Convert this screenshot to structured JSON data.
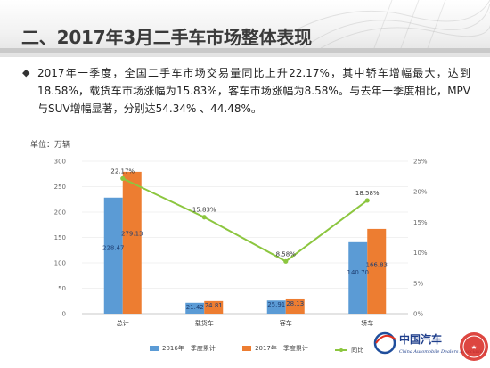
{
  "header": {
    "title": "二、2017年3月二手车市场整体表现"
  },
  "bullet": {
    "symbol": "◆",
    "text": "2017年一季度，全国二手车市场交易量同比上升22.17%，其中轿车增幅最大，达到18.58%，载货车市场涨幅为15.83%，客车市场涨幅为8.58%。与去年一季度相比，MPV与SUV增幅显著，分别达54.34% 、44.48%。"
  },
  "chart_data": {
    "type": "bar",
    "unit_label": "单位：万辆",
    "categories": [
      "总计",
      "载货车",
      "客车",
      "轿车"
    ],
    "series": [
      {
        "name": "2016年一季度累计",
        "type": "bar",
        "color": "#5b9bd5",
        "values": [
          228.47,
          21.42,
          25.91,
          140.7
        ]
      },
      {
        "name": "2017年一季度累计",
        "type": "bar",
        "color": "#ed7d31",
        "values": [
          279.13,
          24.81,
          28.13,
          166.83
        ]
      },
      {
        "name": "同比",
        "type": "line",
        "axis": "right",
        "color": "#8cc63f",
        "values": [
          22.17,
          15.83,
          8.58,
          18.58
        ],
        "labels": [
          "22.17%",
          "15.83%",
          "8.58%",
          "18.58%"
        ]
      }
    ],
    "ylim": [
      0,
      300
    ],
    "yticks": [
      0,
      50,
      100,
      150,
      200,
      250,
      300
    ],
    "y2lim": [
      0,
      25
    ],
    "y2ticks": [
      "0%",
      "5%",
      "10%",
      "15%",
      "20%",
      "25%"
    ],
    "legend_position": "bottom"
  },
  "logo": {
    "name": "中国汽车",
    "tagline": "China Automobile Dealers Association"
  }
}
